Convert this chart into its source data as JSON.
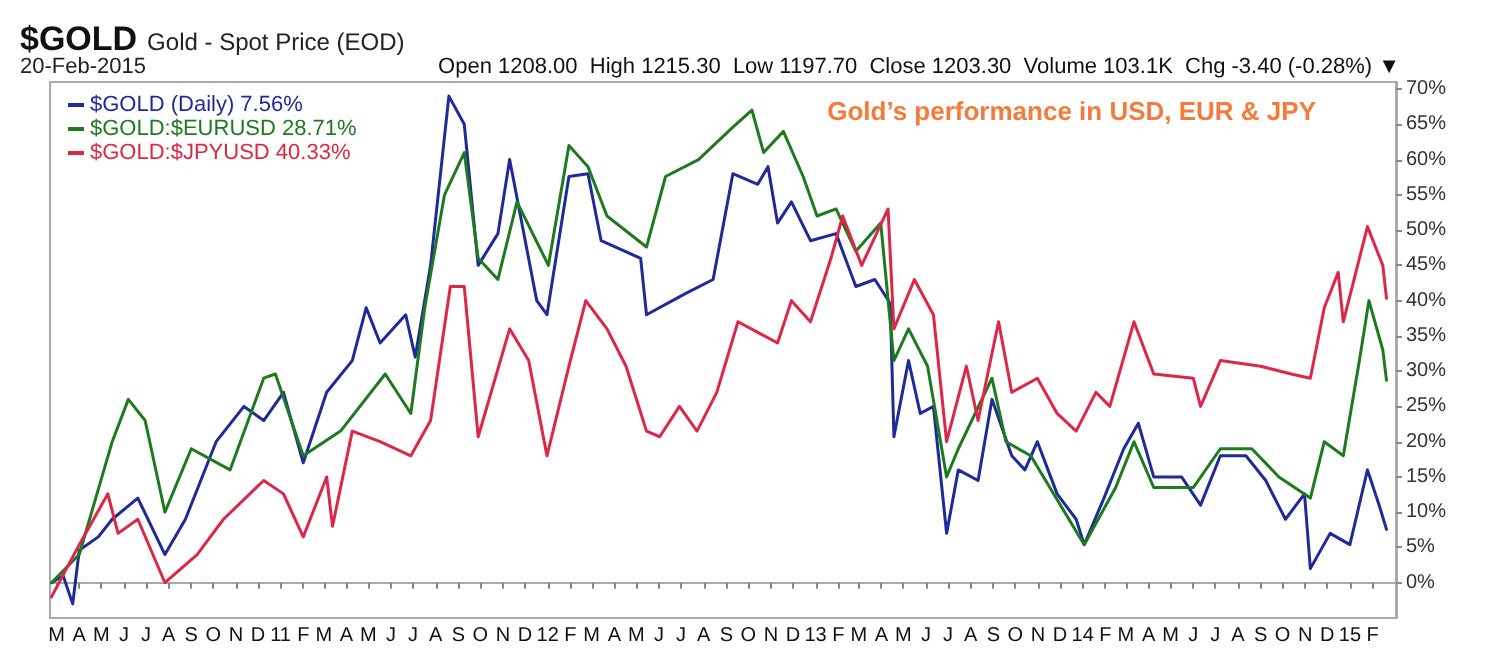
{
  "chart_data": {
    "type": "line",
    "title": "$GOLD",
    "subtitle": "Gold - Spot Price (EOD)",
    "annotations": [
      "20-Feb-2015",
      "Open 1208.00  High 1215.30  Low 1197.70  Close 1203.30  Volume 103.1K  Chg -3.40 (-0.28%) ▼",
      "Gold’s performance in USD, EUR & JPY"
    ],
    "xlim": [
      "2010-02-20",
      "2015-03-05"
    ],
    "xticks": [
      {
        "value": "2010-03-01",
        "label": "M"
      },
      {
        "value": "2010-04-01",
        "label": "A"
      },
      {
        "value": "2010-05-01",
        "label": "M"
      },
      {
        "value": "2010-06-01",
        "label": "J"
      },
      {
        "value": "2010-07-01",
        "label": "J"
      },
      {
        "value": "2010-08-01",
        "label": "A"
      },
      {
        "value": "2010-09-01",
        "label": "S"
      },
      {
        "value": "2010-10-01",
        "label": "O"
      },
      {
        "value": "2010-11-01",
        "label": "N"
      },
      {
        "value": "2010-12-01",
        "label": "D"
      },
      {
        "value": "2011-01-01",
        "label": "11"
      },
      {
        "value": "2011-02-01",
        "label": "F"
      },
      {
        "value": "2011-03-01",
        "label": "M"
      },
      {
        "value": "2011-04-01",
        "label": "A"
      },
      {
        "value": "2011-05-01",
        "label": "M"
      },
      {
        "value": "2011-06-01",
        "label": "J"
      },
      {
        "value": "2011-07-01",
        "label": "J"
      },
      {
        "value": "2011-08-01",
        "label": "A"
      },
      {
        "value": "2011-09-01",
        "label": "S"
      },
      {
        "value": "2011-10-01",
        "label": "O"
      },
      {
        "value": "2011-11-01",
        "label": "N"
      },
      {
        "value": "2011-12-01",
        "label": "D"
      },
      {
        "value": "2012-01-01",
        "label": "12"
      },
      {
        "value": "2012-02-01",
        "label": "F"
      },
      {
        "value": "2012-03-01",
        "label": "M"
      },
      {
        "value": "2012-04-01",
        "label": "A"
      },
      {
        "value": "2012-05-01",
        "label": "M"
      },
      {
        "value": "2012-06-01",
        "label": "J"
      },
      {
        "value": "2012-07-01",
        "label": "J"
      },
      {
        "value": "2012-08-01",
        "label": "A"
      },
      {
        "value": "2012-09-01",
        "label": "S"
      },
      {
        "value": "2012-10-01",
        "label": "O"
      },
      {
        "value": "2012-11-01",
        "label": "N"
      },
      {
        "value": "2012-12-01",
        "label": "D"
      },
      {
        "value": "2013-01-01",
        "label": "13"
      },
      {
        "value": "2013-02-01",
        "label": "F"
      },
      {
        "value": "2013-03-01",
        "label": "M"
      },
      {
        "value": "2013-04-01",
        "label": "A"
      },
      {
        "value": "2013-05-01",
        "label": "M"
      },
      {
        "value": "2013-06-01",
        "label": "J"
      },
      {
        "value": "2013-07-01",
        "label": "J"
      },
      {
        "value": "2013-08-01",
        "label": "A"
      },
      {
        "value": "2013-09-01",
        "label": "S"
      },
      {
        "value": "2013-10-01",
        "label": "O"
      },
      {
        "value": "2013-11-01",
        "label": "N"
      },
      {
        "value": "2013-12-01",
        "label": "D"
      },
      {
        "value": "2014-01-01",
        "label": "14"
      },
      {
        "value": "2014-02-01",
        "label": "F"
      },
      {
        "value": "2014-03-01",
        "label": "M"
      },
      {
        "value": "2014-04-01",
        "label": "A"
      },
      {
        "value": "2014-05-01",
        "label": "M"
      },
      {
        "value": "2014-06-01",
        "label": "J"
      },
      {
        "value": "2014-07-01",
        "label": "J"
      },
      {
        "value": "2014-08-01",
        "label": "A"
      },
      {
        "value": "2014-09-01",
        "label": "S"
      },
      {
        "value": "2014-10-01",
        "label": "O"
      },
      {
        "value": "2014-11-01",
        "label": "N"
      },
      {
        "value": "2014-12-01",
        "label": "D"
      },
      {
        "value": "2015-01-01",
        "label": "15"
      },
      {
        "value": "2015-02-01",
        "label": "F"
      }
    ],
    "ylim": [
      -5,
      71
    ],
    "yticks": [
      {
        "value": 0,
        "label": "0%"
      },
      {
        "value": 5,
        "label": "5%"
      },
      {
        "value": 10,
        "label": "10%"
      },
      {
        "value": 15,
        "label": "15%"
      },
      {
        "value": 20,
        "label": "20%"
      },
      {
        "value": 25,
        "label": "25%"
      },
      {
        "value": 30,
        "label": "30%"
      },
      {
        "value": 35,
        "label": "35%"
      },
      {
        "value": 40,
        "label": "40%"
      },
      {
        "value": 45,
        "label": "45%"
      },
      {
        "value": 50,
        "label": "50%"
      },
      {
        "value": 55,
        "label": "55%"
      },
      {
        "value": 60,
        "label": "60%"
      },
      {
        "value": 65,
        "label": "65%"
      },
      {
        "value": 70,
        "label": "70%"
      }
    ],
    "legend": "top left",
    "marker": "none",
    "line_style": "solid",
    "series": [
      {
        "name": "$GOLD (Daily) 7.56%",
        "color": "#1f2a99",
        "x": [
          "2010-02-22",
          "2010-03-10",
          "2010-03-23",
          "2010-04-01",
          "2010-04-27",
          "2010-05-16",
          "2010-06-20",
          "2010-07-27",
          "2010-08-24",
          "2010-10-05",
          "2010-11-12",
          "2010-12-09",
          "2011-01-05",
          "2011-02-01",
          "2011-03-05",
          "2011-04-09",
          "2011-04-28",
          "2011-05-17",
          "2011-06-21",
          "2011-07-04",
          "2011-07-25",
          "2011-08-19",
          "2011-09-09",
          "2011-09-28",
          "2011-10-25",
          "2011-11-10",
          "2011-12-17",
          "2011-12-31",
          "2012-01-30",
          "2012-02-25",
          "2012-03-14",
          "2012-05-07",
          "2012-05-15",
          "2012-07-07",
          "2012-08-14",
          "2012-09-10",
          "2012-10-14",
          "2012-10-28",
          "2012-11-10",
          "2012-11-29",
          "2012-12-25",
          "2013-01-29",
          "2013-02-25",
          "2013-03-23",
          "2013-04-13",
          "2013-04-18",
          "2013-05-08",
          "2013-05-24",
          "2013-06-11",
          "2013-06-29",
          "2013-07-15",
          "2013-08-11",
          "2013-08-30",
          "2013-09-26",
          "2013-10-14",
          "2013-10-31",
          "2013-11-27",
          "2013-12-23",
          "2014-01-03",
          "2014-01-30",
          "2014-02-26",
          "2014-03-18",
          "2014-04-08",
          "2014-05-16",
          "2014-06-11",
          "2014-07-08",
          "2014-08-12",
          "2014-09-08",
          "2014-10-05",
          "2014-10-31",
          "2014-11-08",
          "2014-12-05",
          "2015-01-01",
          "2015-01-25",
          "2015-02-10",
          "2015-02-20"
        ],
        "values": [
          0,
          1,
          -3,
          4.6,
          6.5,
          9,
          12,
          4,
          9,
          20,
          25,
          23,
          27,
          17,
          27,
          31.5,
          39,
          34,
          38,
          32,
          45,
          69,
          65,
          45,
          49.5,
          60,
          40,
          38,
          57.6,
          58,
          48.5,
          46,
          38,
          41,
          43,
          58,
          56.5,
          59,
          51,
          54,
          48.5,
          49.5,
          42,
          43,
          39.6,
          20.7,
          31.5,
          24,
          25,
          7,
          16,
          14.5,
          26,
          18,
          16,
          20,
          12.6,
          9,
          5.4,
          12,
          19,
          22.6,
          15,
          15,
          11,
          18,
          18,
          14.5,
          9,
          12.6,
          2,
          7,
          5.4,
          16,
          11,
          7.56
        ]
      },
      {
        "name": "$GOLD:$EURUSD 28.71%",
        "color": "#1e7a1e",
        "x": [
          "2010-02-22",
          "2010-04-01",
          "2010-05-16",
          "2010-06-07",
          "2010-06-30",
          "2010-07-27",
          "2010-09-01",
          "2010-10-24",
          "2010-12-09",
          "2010-12-25",
          "2011-02-01",
          "2011-03-24",
          "2011-05-24",
          "2011-06-28",
          "2011-07-17",
          "2011-08-13",
          "2011-09-09",
          "2011-09-28",
          "2011-10-25",
          "2011-11-20",
          "2012-01-02",
          "2012-01-30",
          "2012-02-25",
          "2012-03-22",
          "2012-05-15",
          "2012-06-10",
          "2012-07-25",
          "2012-09-10",
          "2012-10-06",
          "2012-10-22",
          "2012-11-18",
          "2012-12-15",
          "2013-01-03",
          "2013-01-29",
          "2013-02-25",
          "2013-03-31",
          "2013-04-18",
          "2013-05-08",
          "2013-06-03",
          "2013-06-29",
          "2013-07-15",
          "2013-08-30",
          "2013-09-18",
          "2013-10-22",
          "2014-01-03",
          "2014-02-15",
          "2014-03-12",
          "2014-04-08",
          "2014-06-01",
          "2014-07-08",
          "2014-08-20",
          "2014-09-26",
          "2014-11-08",
          "2014-11-27",
          "2014-12-23",
          "2015-01-14",
          "2015-01-27",
          "2015-02-15",
          "2015-02-20"
        ],
        "values": [
          0,
          4,
          20,
          26,
          23,
          10,
          19,
          16,
          29,
          29.6,
          18,
          21.5,
          29.6,
          24,
          39,
          55,
          61,
          46,
          43,
          54,
          45,
          62,
          59,
          52,
          47.6,
          57.6,
          60,
          64.6,
          67,
          61,
          64,
          57.6,
          52,
          53,
          47,
          51,
          31.5,
          36,
          30.7,
          15,
          19,
          29,
          20,
          18,
          5.4,
          13.5,
          20,
          13.5,
          13.5,
          19,
          19,
          15,
          12,
          20,
          18,
          31.5,
          40,
          33,
          28.71
        ]
      },
      {
        "name": "$GOLD:$JPYUSD 40.33%",
        "color": "#dd2648",
        "x": [
          "2010-02-22",
          "2010-04-01",
          "2010-05-10",
          "2010-05-24",
          "2010-06-20",
          "2010-07-27",
          "2010-09-09",
          "2010-10-15",
          "2010-12-09",
          "2011-01-05",
          "2011-02-01",
          "2011-03-05",
          "2011-03-13",
          "2011-04-09",
          "2011-05-17",
          "2011-06-28",
          "2011-07-25",
          "2011-08-21",
          "2011-09-09",
          "2011-09-28",
          "2011-11-10",
          "2011-12-06",
          "2011-12-31",
          "2012-01-30",
          "2012-02-22",
          "2012-03-22",
          "2012-04-17",
          "2012-05-15",
          "2012-06-02",
          "2012-06-29",
          "2012-07-23",
          "2012-08-19",
          "2012-09-17",
          "2012-11-10",
          "2012-11-29",
          "2012-12-25",
          "2013-01-22",
          "2013-02-07",
          "2013-03-05",
          "2013-04-10",
          "2013-04-18",
          "2013-05-16",
          "2013-06-11",
          "2013-06-29",
          "2013-07-26",
          "2013-08-11",
          "2013-09-08",
          "2013-09-26",
          "2013-10-31",
          "2013-11-27",
          "2013-12-23",
          "2014-01-19",
          "2014-02-07",
          "2014-03-12",
          "2014-04-08",
          "2014-06-01",
          "2014-06-11",
          "2014-07-08",
          "2014-09-01",
          "2014-10-13",
          "2014-11-08",
          "2014-11-27",
          "2014-12-16",
          "2014-12-23",
          "2015-01-25",
          "2015-02-15",
          "2015-02-20"
        ],
        "values": [
          -2,
          5.4,
          12.6,
          7,
          9,
          0,
          4,
          9,
          14.5,
          12.6,
          6.5,
          15,
          8,
          21.5,
          20,
          18,
          23,
          42,
          42,
          20.7,
          36,
          31.5,
          18,
          30.7,
          40,
          36,
          30.7,
          21.5,
          20.7,
          25,
          21.5,
          27,
          37,
          34,
          40,
          37,
          46,
          52,
          45,
          53,
          36,
          43,
          38,
          20,
          30.7,
          23,
          37,
          27,
          29,
          24,
          21.5,
          27,
          25,
          37,
          29.6,
          29,
          25,
          31.5,
          30.7,
          29.6,
          29,
          39,
          44,
          37,
          50.5,
          45,
          40.33
        ]
      }
    ]
  }
}
